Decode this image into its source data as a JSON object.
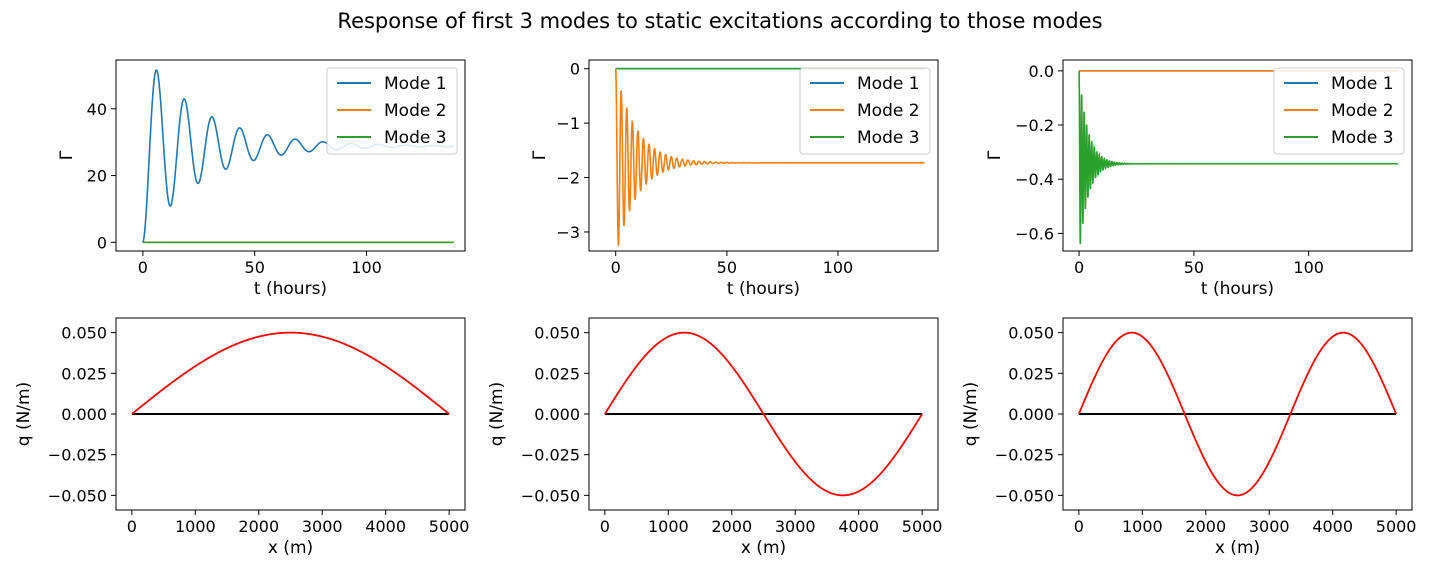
{
  "figure": {
    "title": "Response of first 3 modes to static excitations according to those modes"
  },
  "colors": {
    "mode1": "#1f77b4",
    "mode2": "#ff7f0e",
    "mode3": "#2ca02c",
    "load": "#ff0000",
    "baseline": "#000000"
  },
  "chart_data": [
    {
      "type": "line",
      "xlabel": "t (hours)",
      "ylabel": "Γ",
      "xlim": [
        -12,
        144
      ],
      "ylim": [
        -2.6,
        54.6
      ],
      "xticks": [
        0,
        50,
        100
      ],
      "yticks": [
        0,
        20,
        40
      ],
      "legend_position": "top-right",
      "legend": [
        "Mode 1",
        "Mode 2",
        "Mode 3"
      ],
      "response": {
        "active": 1,
        "final": 28.8,
        "peak": 51.5,
        "period_h": 12.4,
        "t_end": 139
      },
      "series": [
        {
          "name": "Mode 1",
          "color": "#1f77b4",
          "final": 28.8
        },
        {
          "name": "Mode 2",
          "color": "#ff7f0e",
          "final": 0
        },
        {
          "name": "Mode 3",
          "color": "#2ca02c",
          "final": 0
        }
      ]
    },
    {
      "type": "line",
      "xlabel": "t (hours)",
      "ylabel": "Γ",
      "xlim": [
        -12,
        145
      ],
      "ylim": [
        -3.35,
        0.16
      ],
      "xticks": [
        0,
        50,
        100
      ],
      "yticks": [
        0,
        -1,
        -2,
        -3
      ],
      "legend_position": "top-right",
      "legend": [
        "Mode 1",
        "Mode 2",
        "Mode 3"
      ],
      "response": {
        "active": 2,
        "final": -1.73,
        "peak": -3.24,
        "period_h": 2.5,
        "t_end": 139
      },
      "series": [
        {
          "name": "Mode 1",
          "color": "#1f77b4",
          "final": 0
        },
        {
          "name": "Mode 2",
          "color": "#ff7f0e",
          "final": -1.73
        },
        {
          "name": "Mode 3",
          "color": "#2ca02c",
          "final": 0
        }
      ]
    },
    {
      "type": "line",
      "xlabel": "t (hours)",
      "ylabel": "Γ",
      "xlim": [
        -7,
        145
      ],
      "ylim": [
        -0.665,
        0.04
      ],
      "xticks": [
        0,
        50,
        100
      ],
      "yticks": [
        0.0,
        -0.2,
        -0.4,
        -0.6
      ],
      "legend_position": "top-right",
      "legend": [
        "Mode 1",
        "Mode 2",
        "Mode 3"
      ],
      "response": {
        "active": 3,
        "final": -0.343,
        "peak": -0.64,
        "period_h": 1.1,
        "t_end": 139
      },
      "series": [
        {
          "name": "Mode 1",
          "color": "#1f77b4",
          "final": 0
        },
        {
          "name": "Mode 2",
          "color": "#ff7f0e",
          "final": 0
        },
        {
          "name": "Mode 3",
          "color": "#2ca02c",
          "final": -0.343
        }
      ]
    },
    {
      "type": "line",
      "xlabel": "x (m)",
      "ylabel": "q (N/m)",
      "xlim": [
        -250,
        5250
      ],
      "ylim": [
        -0.059,
        0.059
      ],
      "xticks": [
        0,
        1000,
        2000,
        3000,
        4000,
        5000
      ],
      "yticks": [
        0.05,
        0.025,
        0.0,
        -0.025,
        -0.05
      ],
      "load": {
        "mode": 1,
        "amplitude": 0.05,
        "length": 5000
      }
    },
    {
      "type": "line",
      "xlabel": "x (m)",
      "ylabel": "q (N/m)",
      "xlim": [
        -250,
        5250
      ],
      "ylim": [
        -0.059,
        0.059
      ],
      "xticks": [
        0,
        1000,
        2000,
        3000,
        4000,
        5000
      ],
      "yticks": [
        0.05,
        0.025,
        0.0,
        -0.025,
        -0.05
      ],
      "load": {
        "mode": 2,
        "amplitude": 0.05,
        "length": 5000
      }
    },
    {
      "type": "line",
      "xlabel": "x (m)",
      "ylabel": "q (N/m)",
      "xlim": [
        -250,
        5250
      ],
      "ylim": [
        -0.059,
        0.059
      ],
      "xticks": [
        0,
        1000,
        2000,
        3000,
        4000,
        5000
      ],
      "yticks": [
        0.05,
        0.025,
        0.0,
        -0.025,
        -0.05
      ],
      "load": {
        "mode": 3,
        "amplitude": 0.05,
        "length": 5000
      }
    }
  ]
}
